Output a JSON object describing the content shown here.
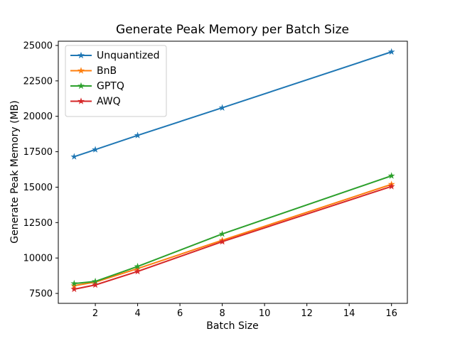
{
  "chart_data": {
    "type": "line",
    "title": "Generate Peak Memory per Batch Size",
    "xlabel": "Batch Size",
    "ylabel": "Generate Peak Memory (MB)",
    "x": [
      1,
      2,
      4,
      8,
      16
    ],
    "series": [
      {
        "name": "Unquantized",
        "color": "#1f77b4",
        "values": [
          17150,
          17650,
          18650,
          20600,
          24550
        ]
      },
      {
        "name": "BnB",
        "color": "#ff7f0e",
        "values": [
          8050,
          8300,
          9250,
          11250,
          15200
        ]
      },
      {
        "name": "GPTQ",
        "color": "#2ca02c",
        "values": [
          8200,
          8350,
          9400,
          11700,
          15800
        ]
      },
      {
        "name": "AWQ",
        "color": "#d62728",
        "values": [
          7800,
          8100,
          9050,
          11150,
          15050
        ]
      }
    ],
    "xlim": [
      0.25,
      16.75
    ],
    "ylim": [
      6800,
      25300
    ],
    "xticks": [
      2,
      4,
      6,
      8,
      10,
      12,
      14,
      16
    ],
    "yticks": [
      7500,
      10000,
      12500,
      15000,
      17500,
      20000,
      22500,
      25000
    ],
    "marker": "star",
    "line_width": 2,
    "grid": false,
    "legend_position": "upper-left",
    "spine_color": "#000000",
    "legend_border_color": "#cccccc",
    "background_color": "#ffffff"
  }
}
